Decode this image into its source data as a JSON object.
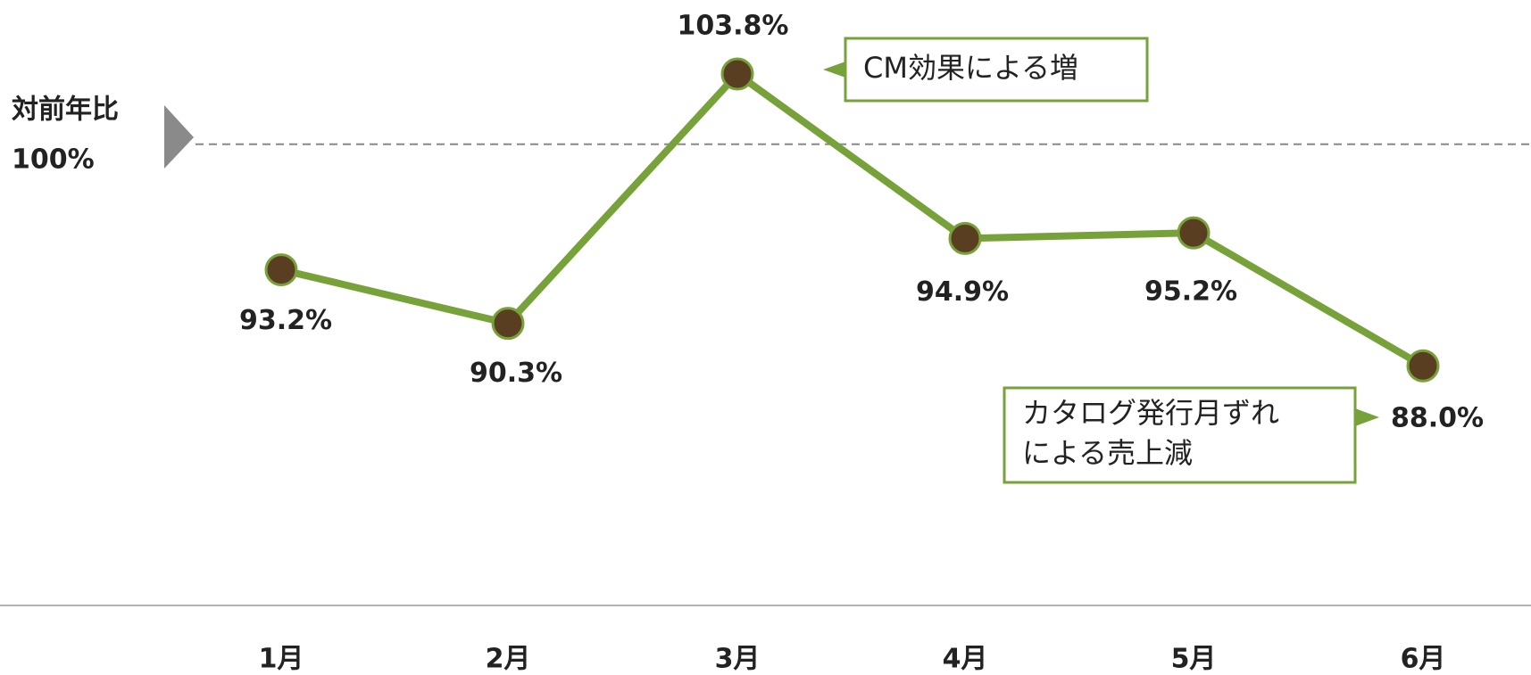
{
  "chart_data": {
    "type": "line",
    "categories": [
      "1月",
      "2月",
      "3月",
      "4月",
      "5月",
      "6月"
    ],
    "series": [
      {
        "name": "対前年比",
        "color": "#77a23a",
        "marker_color": "#5a3e22",
        "values": [
          93.2,
          90.3,
          103.8,
          94.9,
          95.2,
          88.0
        ],
        "value_labels": [
          "93.2%",
          "90.3%",
          "103.8%",
          "94.9%",
          "95.2%",
          "88.0%"
        ]
      }
    ],
    "ylim": [
      80,
      108
    ],
    "reference": {
      "label": "対前年比",
      "value": 100,
      "value_label": "100%"
    },
    "annotations": [
      {
        "lines": [
          "CM効果による増"
        ],
        "category": 2
      },
      {
        "lines": [
          "カタログ発行月ずれ",
          "による売上減"
        ],
        "category": 5
      }
    ]
  }
}
